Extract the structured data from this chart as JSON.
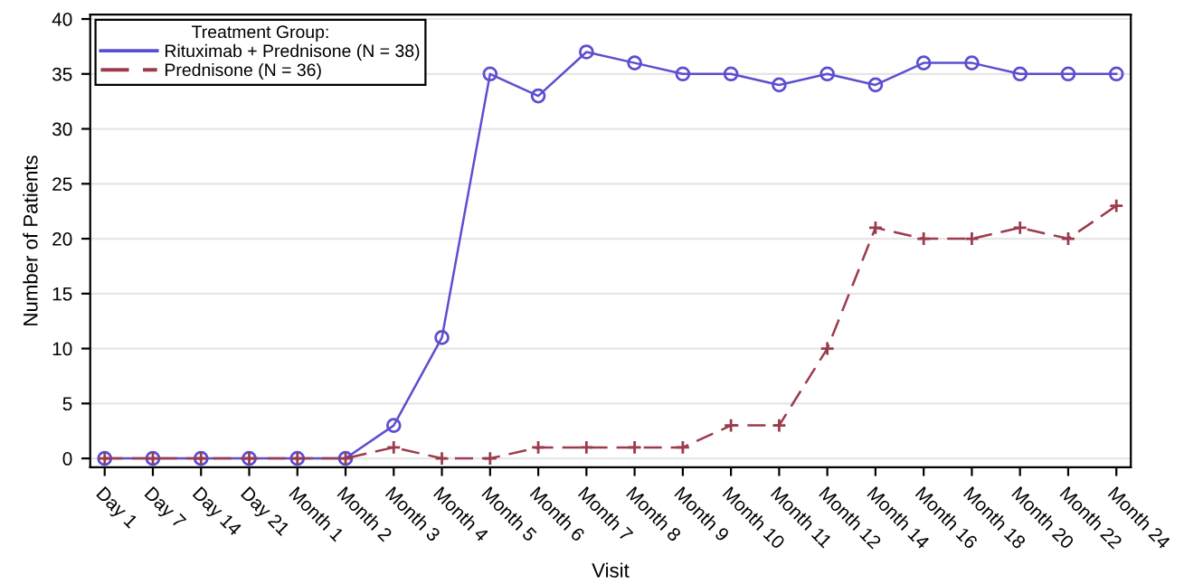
{
  "chart_data": {
    "type": "line",
    "xlabel": "Visit",
    "ylabel": "Number of Patients",
    "legend_title": "Treatment Group:",
    "categories": [
      "Day 1",
      "Day 7",
      "Day 14",
      "Day 21",
      "Month 1",
      "Month 2",
      "Month 3",
      "Month 4",
      "Month 5",
      "Month 6",
      "Month 7",
      "Month 8",
      "Month 9",
      "Month 10",
      "Month 11",
      "Month 12",
      "Month 14",
      "Month 16",
      "Month 18",
      "Month 20",
      "Month 22",
      "Month 24"
    ],
    "series": [
      {
        "name": "Rituximab + Prednisone (N = 38)",
        "color": "#5b4fd0",
        "marker": "circle",
        "line_style": "solid",
        "values": [
          0,
          0,
          0,
          0,
          0,
          0,
          3,
          11,
          35,
          33,
          37,
          36,
          35,
          35,
          34,
          35,
          34,
          36,
          36,
          35,
          35,
          35
        ]
      },
      {
        "name": "Prednisone (N = 36)",
        "color": "#9b3b4c",
        "marker": "cross",
        "line_style": "dashed",
        "values": [
          0,
          0,
          0,
          0,
          0,
          0,
          1,
          0,
          0,
          1,
          1,
          1,
          1,
          3,
          3,
          10,
          21,
          20,
          20,
          21,
          20,
          23
        ]
      }
    ],
    "ylim": [
      -0.8,
      40.4
    ],
    "yticks": [
      0,
      5,
      10,
      15,
      20,
      25,
      30,
      35,
      40
    ],
    "grid": "y",
    "legend": "top left"
  }
}
